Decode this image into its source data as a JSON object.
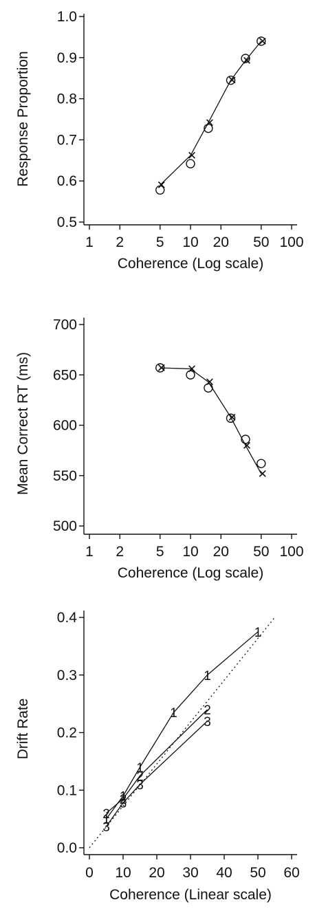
{
  "chart_data": [
    {
      "type": "line",
      "xlabel": "Coherence (Log scale)",
      "ylabel": "Response Proportion",
      "xscale": "log",
      "xlim": [
        1,
        100
      ],
      "ylim": [
        0.5,
        1.0
      ],
      "xticks": [
        1,
        2,
        5,
        10,
        20,
        50,
        100
      ],
      "xtick_labels": [
        "1",
        "2",
        "5",
        "10",
        "20",
        "50",
        "100"
      ],
      "yticks": [
        0.5,
        0.6,
        0.7,
        0.8,
        0.9,
        1.0
      ],
      "ytick_labels": [
        "0.5",
        "0.6",
        "0.7",
        "0.8",
        "0.9",
        "1.0"
      ],
      "grid": false,
      "series": [
        {
          "marker": "o",
          "x": [
            5,
            10,
            15,
            25,
            35,
            50
          ],
          "y": [
            0.578,
            0.642,
            0.728,
            0.845,
            0.898,
            0.94
          ]
        },
        {
          "marker": "x",
          "x": [
            5,
            10,
            15,
            25,
            35,
            50
          ],
          "y": [
            0.59,
            0.662,
            0.742,
            0.845,
            0.893,
            0.94
          ],
          "line": true
        }
      ]
    },
    {
      "type": "line",
      "xlabel": "Coherence (Log scale)",
      "ylabel": "Mean Correct RT (ms)",
      "xscale": "log",
      "xlim": [
        1,
        100
      ],
      "ylim": [
        500,
        700
      ],
      "xticks": [
        1,
        2,
        5,
        10,
        20,
        50,
        100
      ],
      "xtick_labels": [
        "1",
        "2",
        "5",
        "10",
        "20",
        "50",
        "100"
      ],
      "yticks": [
        500,
        550,
        600,
        650,
        700
      ],
      "ytick_labels": [
        "500",
        "550",
        "600",
        "650",
        "700"
      ],
      "grid": false,
      "series": [
        {
          "marker": "o",
          "x": [
            5,
            10,
            15,
            25,
            35,
            50
          ],
          "y": [
            657,
            650,
            637,
            607,
            586,
            562
          ]
        },
        {
          "marker": "x",
          "x": [
            5,
            10,
            15,
            25,
            35,
            50
          ],
          "y": [
            657,
            656,
            643,
            608,
            580,
            552
          ],
          "line": true
        }
      ]
    },
    {
      "type": "line",
      "xlabel": "Coherence (Linear scale)",
      "ylabel": "Drift Rate",
      "xlim": [
        0,
        60
      ],
      "ylim": [
        0,
        0.4
      ],
      "xticks": [
        0,
        10,
        20,
        30,
        40,
        50,
        60
      ],
      "xtick_labels": [
        "0",
        "10",
        "20",
        "30",
        "40",
        "50",
        "60"
      ],
      "yticks": [
        0,
        0.1,
        0.2,
        0.3,
        0.4
      ],
      "ytick_labels": [
        "0.0",
        "0.1",
        "0.2",
        "0.3",
        "0.4"
      ],
      "grid": false,
      "reference_line": {
        "style": "dotted",
        "from": [
          0,
          0
        ],
        "to": [
          55,
          0.4
        ]
      },
      "series": [
        {
          "marker_label": "1",
          "x": [
            5,
            10,
            15,
            25,
            35,
            50
          ],
          "y": [
            0.05,
            0.09,
            0.14,
            0.235,
            0.3,
            0.375
          ]
        },
        {
          "marker_label": "2",
          "x": [
            5,
            10,
            15,
            35
          ],
          "y": [
            0.06,
            0.085,
            0.125,
            0.24
          ]
        },
        {
          "marker_label": "3",
          "x": [
            5,
            10,
            15,
            35
          ],
          "y": [
            0.037,
            0.078,
            0.11,
            0.22
          ]
        }
      ]
    }
  ]
}
